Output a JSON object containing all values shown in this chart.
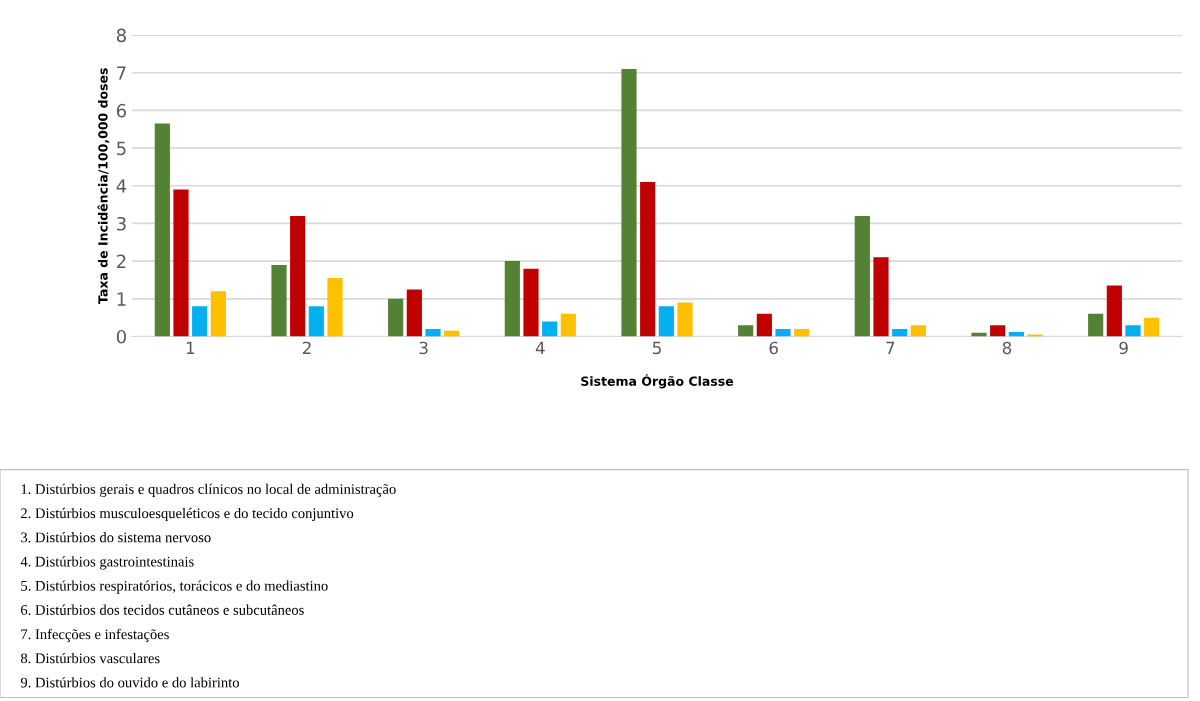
{
  "chart_data": {
    "type": "bar",
    "xlabel": "Sistema Órgão Classe",
    "ylabel": "Taxa de Incidência/100,000 doses",
    "categories": [
      "1",
      "2",
      "3",
      "4",
      "5",
      "6",
      "7",
      "8",
      "9"
    ],
    "series": [
      {
        "color": "#548235",
        "values": [
          5.65,
          1.9,
          1.0,
          2.0,
          7.1,
          0.3,
          3.2,
          0.1,
          0.6
        ]
      },
      {
        "color": "#c00000",
        "values": [
          3.9,
          3.2,
          1.25,
          1.8,
          4.1,
          0.6,
          2.1,
          0.3,
          1.35
        ]
      },
      {
        "color": "#00b0f0",
        "values": [
          0.8,
          0.8,
          0.2,
          0.4,
          0.8,
          0.2,
          0.2,
          0.12,
          0.3
        ]
      },
      {
        "color": "#ffc000",
        "values": [
          1.2,
          1.55,
          0.15,
          0.6,
          0.9,
          0.2,
          0.3,
          0.05,
          0.5
        ]
      }
    ],
    "ylim": [
      0,
      8
    ],
    "yticks": [
      0,
      1,
      2,
      3,
      4,
      5,
      6,
      7,
      8
    ],
    "grid": "y",
    "annotations": [
      "1. Distúrbios gerais e quadros clínicos no local de administração",
      "2. Distúrbios musculoesqueléticos e do tecido conjuntivo",
      "3. Distúrbios do sistema nervoso",
      "4. Distúrbios gastrointestinais",
      "5. Distúrbios respiratórios, torácicos e do mediastino",
      "6. Distúrbios dos tecidos cutâneos e subcutâneos",
      "7. Infecções e infestações",
      "8. Distúrbios vasculares",
      "9. Distúrbios do ouvido e do labirinto"
    ]
  }
}
